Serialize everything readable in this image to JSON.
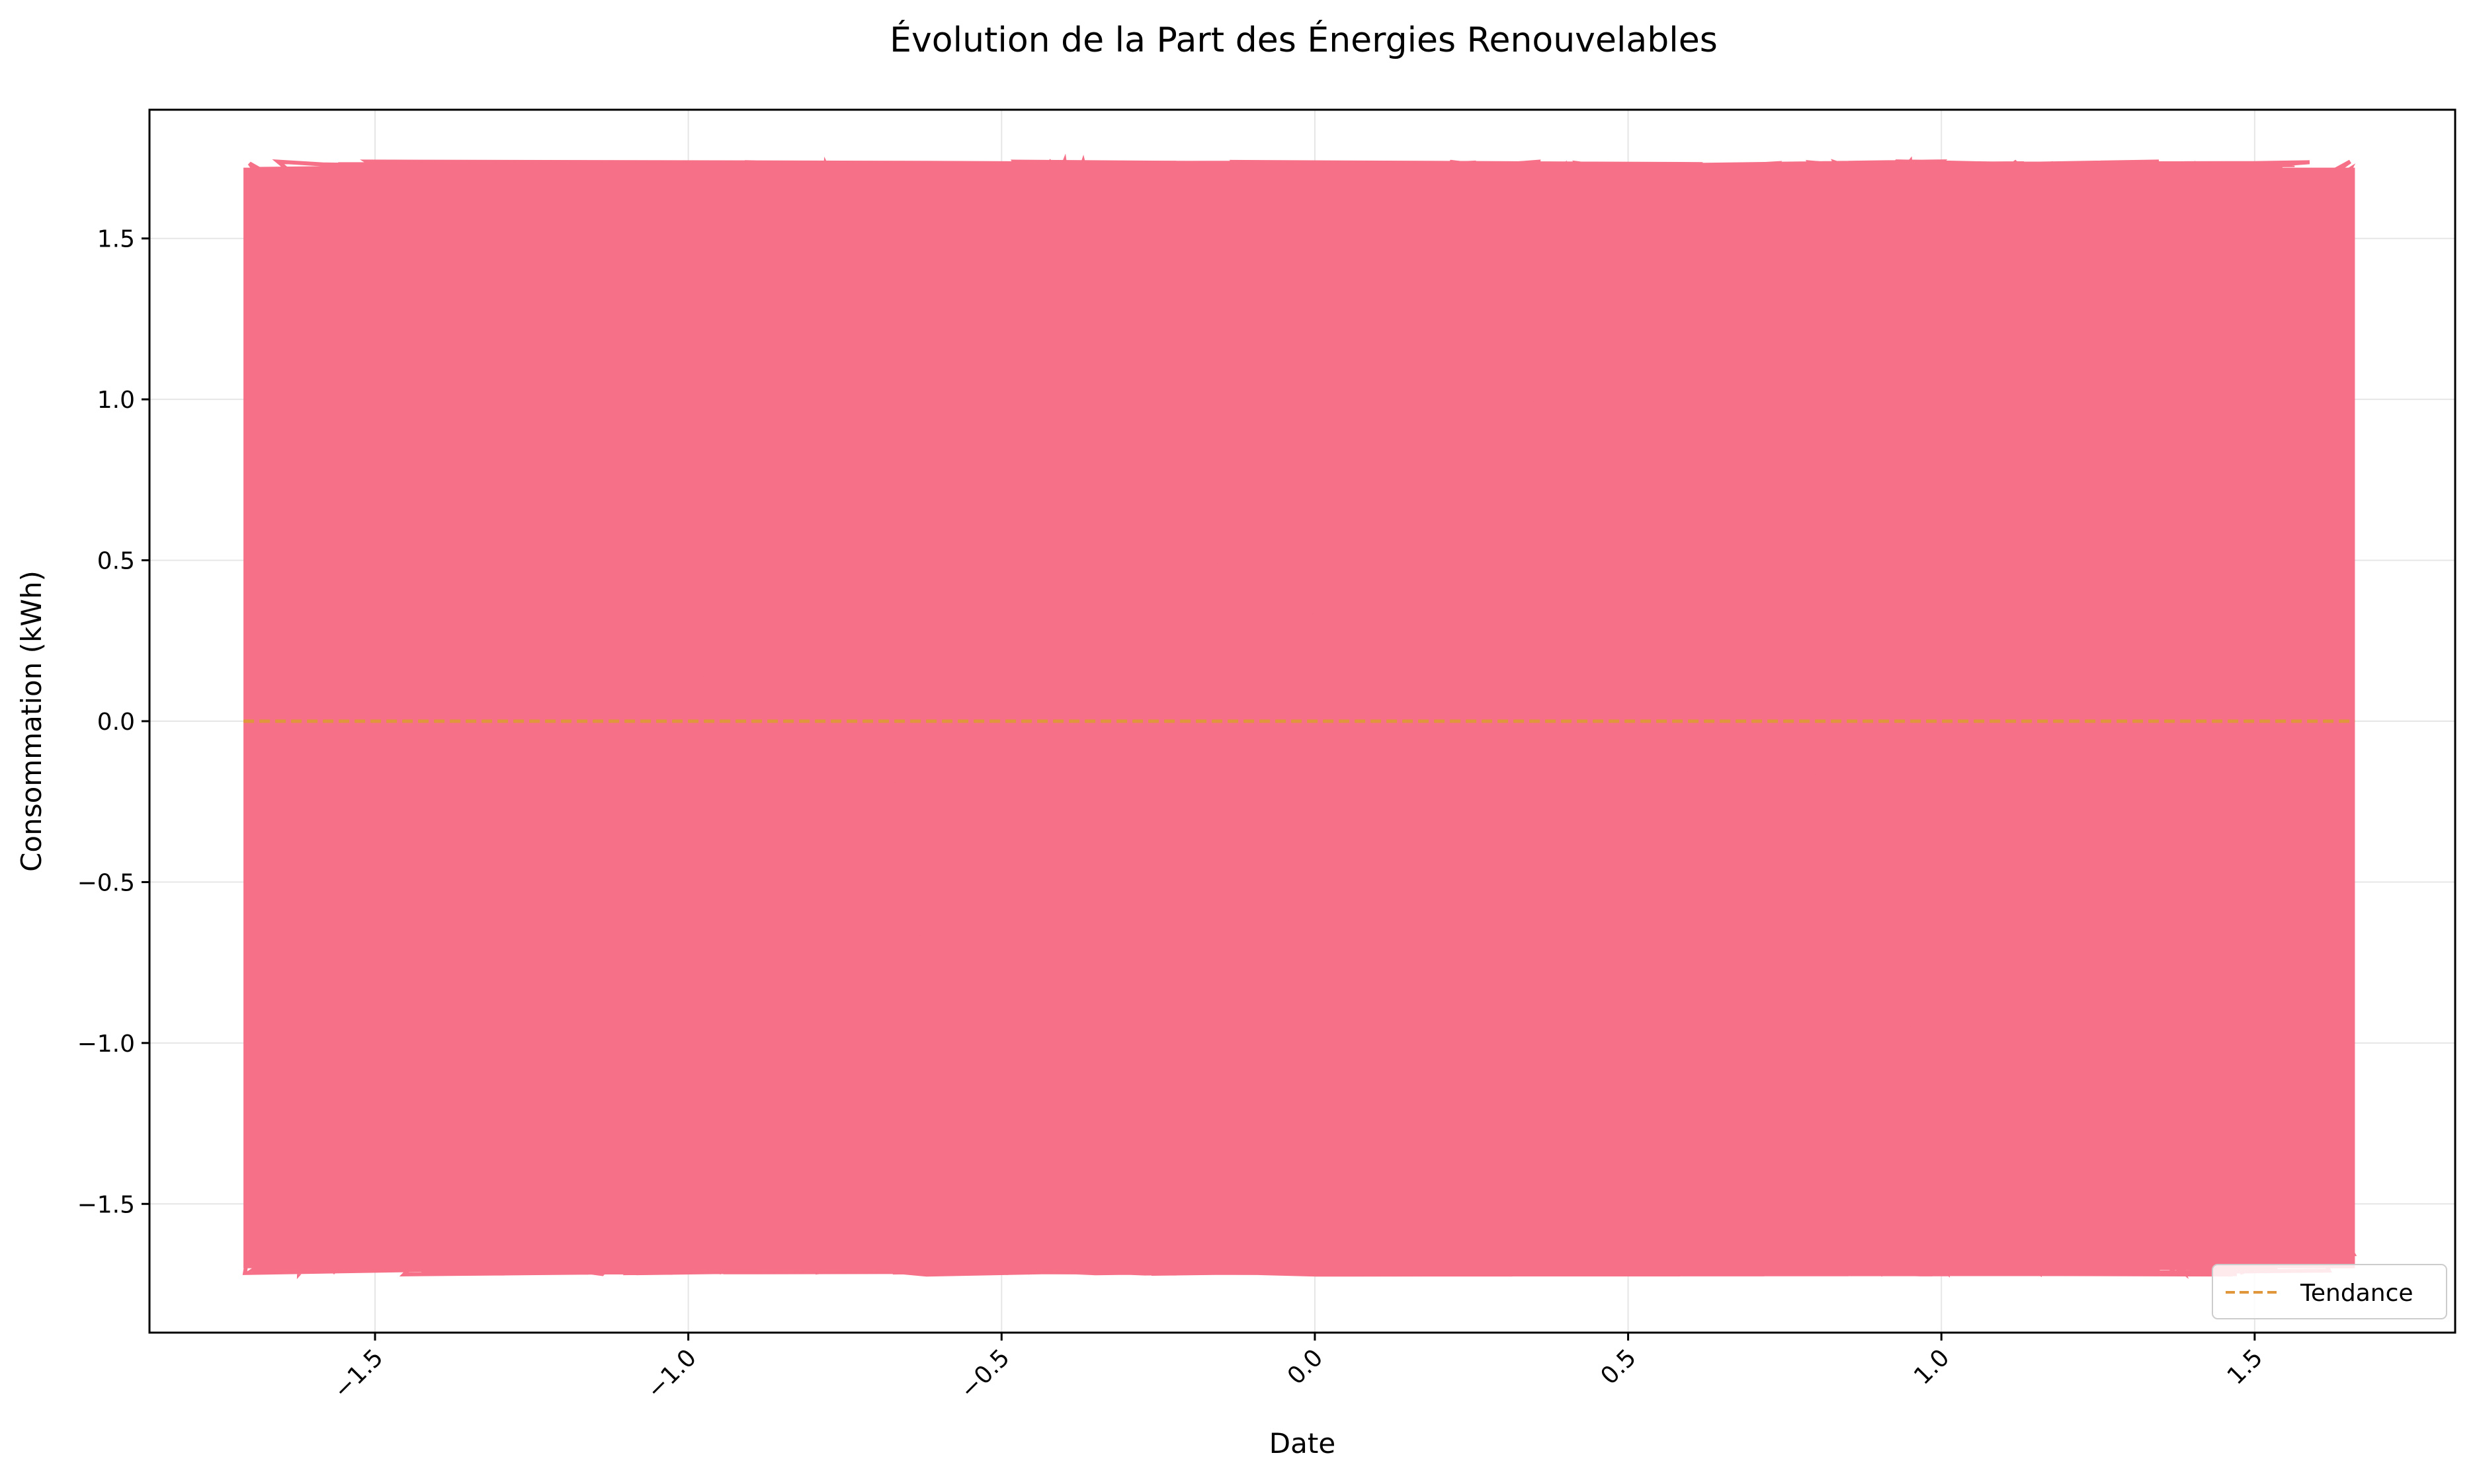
{
  "chart_data": {
    "type": "line",
    "title": "Évolution de la Part des Énergies Renouvelables",
    "xlabel": "Date",
    "ylabel": "Consommation (kWh)",
    "xlim": [
      -1.86,
      1.82
    ],
    "ylim": [
      -1.9,
      1.9
    ],
    "xticks": [
      -1.5,
      -1.0,
      -0.5,
      0.0,
      0.5,
      1.0,
      1.5
    ],
    "xtick_labels": [
      "−1.5",
      "−1.0",
      "−0.5",
      "0.0",
      "0.5",
      "1.0",
      "1.5"
    ],
    "yticks": [
      -1.5,
      -1.0,
      -0.5,
      0.0,
      0.5,
      1.0,
      1.5
    ],
    "ytick_labels": [
      "−1.5",
      "−1.0",
      "−0.5",
      "0.0",
      "0.5",
      "1.0",
      "1.5"
    ],
    "xtick_rotation": 45,
    "grid": true,
    "legend_position": "lower right",
    "series": [
      {
        "color": "#f67088",
        "x_range": [
          -1.71,
          1.66
        ],
        "y_range": [
          -1.72,
          1.74
        ],
        "style": "solid"
      },
      {
        "name": "Tendance",
        "color": "#e0963a",
        "style": "dashed",
        "x": [
          -1.71,
          1.66
        ],
        "y": [
          0.0,
          0.0
        ]
      }
    ]
  }
}
